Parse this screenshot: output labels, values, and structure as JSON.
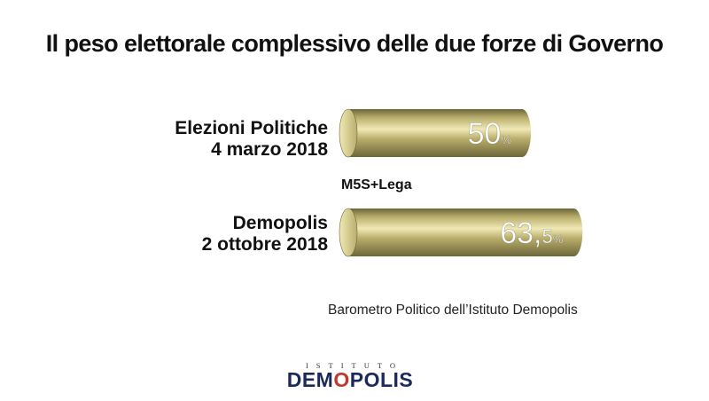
{
  "chart_data": {
    "type": "bar",
    "orientation": "horizontal",
    "title": "Il peso elettorale complessivo delle due forze di Governo",
    "categories": [
      [
        "Elezioni Politiche",
        "4 marzo 2018"
      ],
      [
        "Demopolis",
        "2 ottobre 2018"
      ]
    ],
    "series": [
      {
        "name": "M5S+Lega",
        "values": [
          50,
          63.5
        ]
      }
    ],
    "value_labels": [
      {
        "main": "50",
        "suffix": "%"
      },
      {
        "main": "63,",
        "frac": "5",
        "suffix": "%"
      }
    ],
    "unit": "%",
    "xlim": [
      0,
      100
    ],
    "grid": false,
    "bar_style": "cylinder",
    "colors": {
      "bar": "#b9ae6c",
      "bar_light": "#f0e9b5",
      "bar_dark": "#6d6638",
      "value_text": "#ffffff"
    }
  },
  "source": "Barometro Politico dell’Istituto Demopolis",
  "logo": {
    "small": "ISTITUTO",
    "main_pre": "DEM",
    "main_o": "O",
    "main_post": "POLIS"
  }
}
